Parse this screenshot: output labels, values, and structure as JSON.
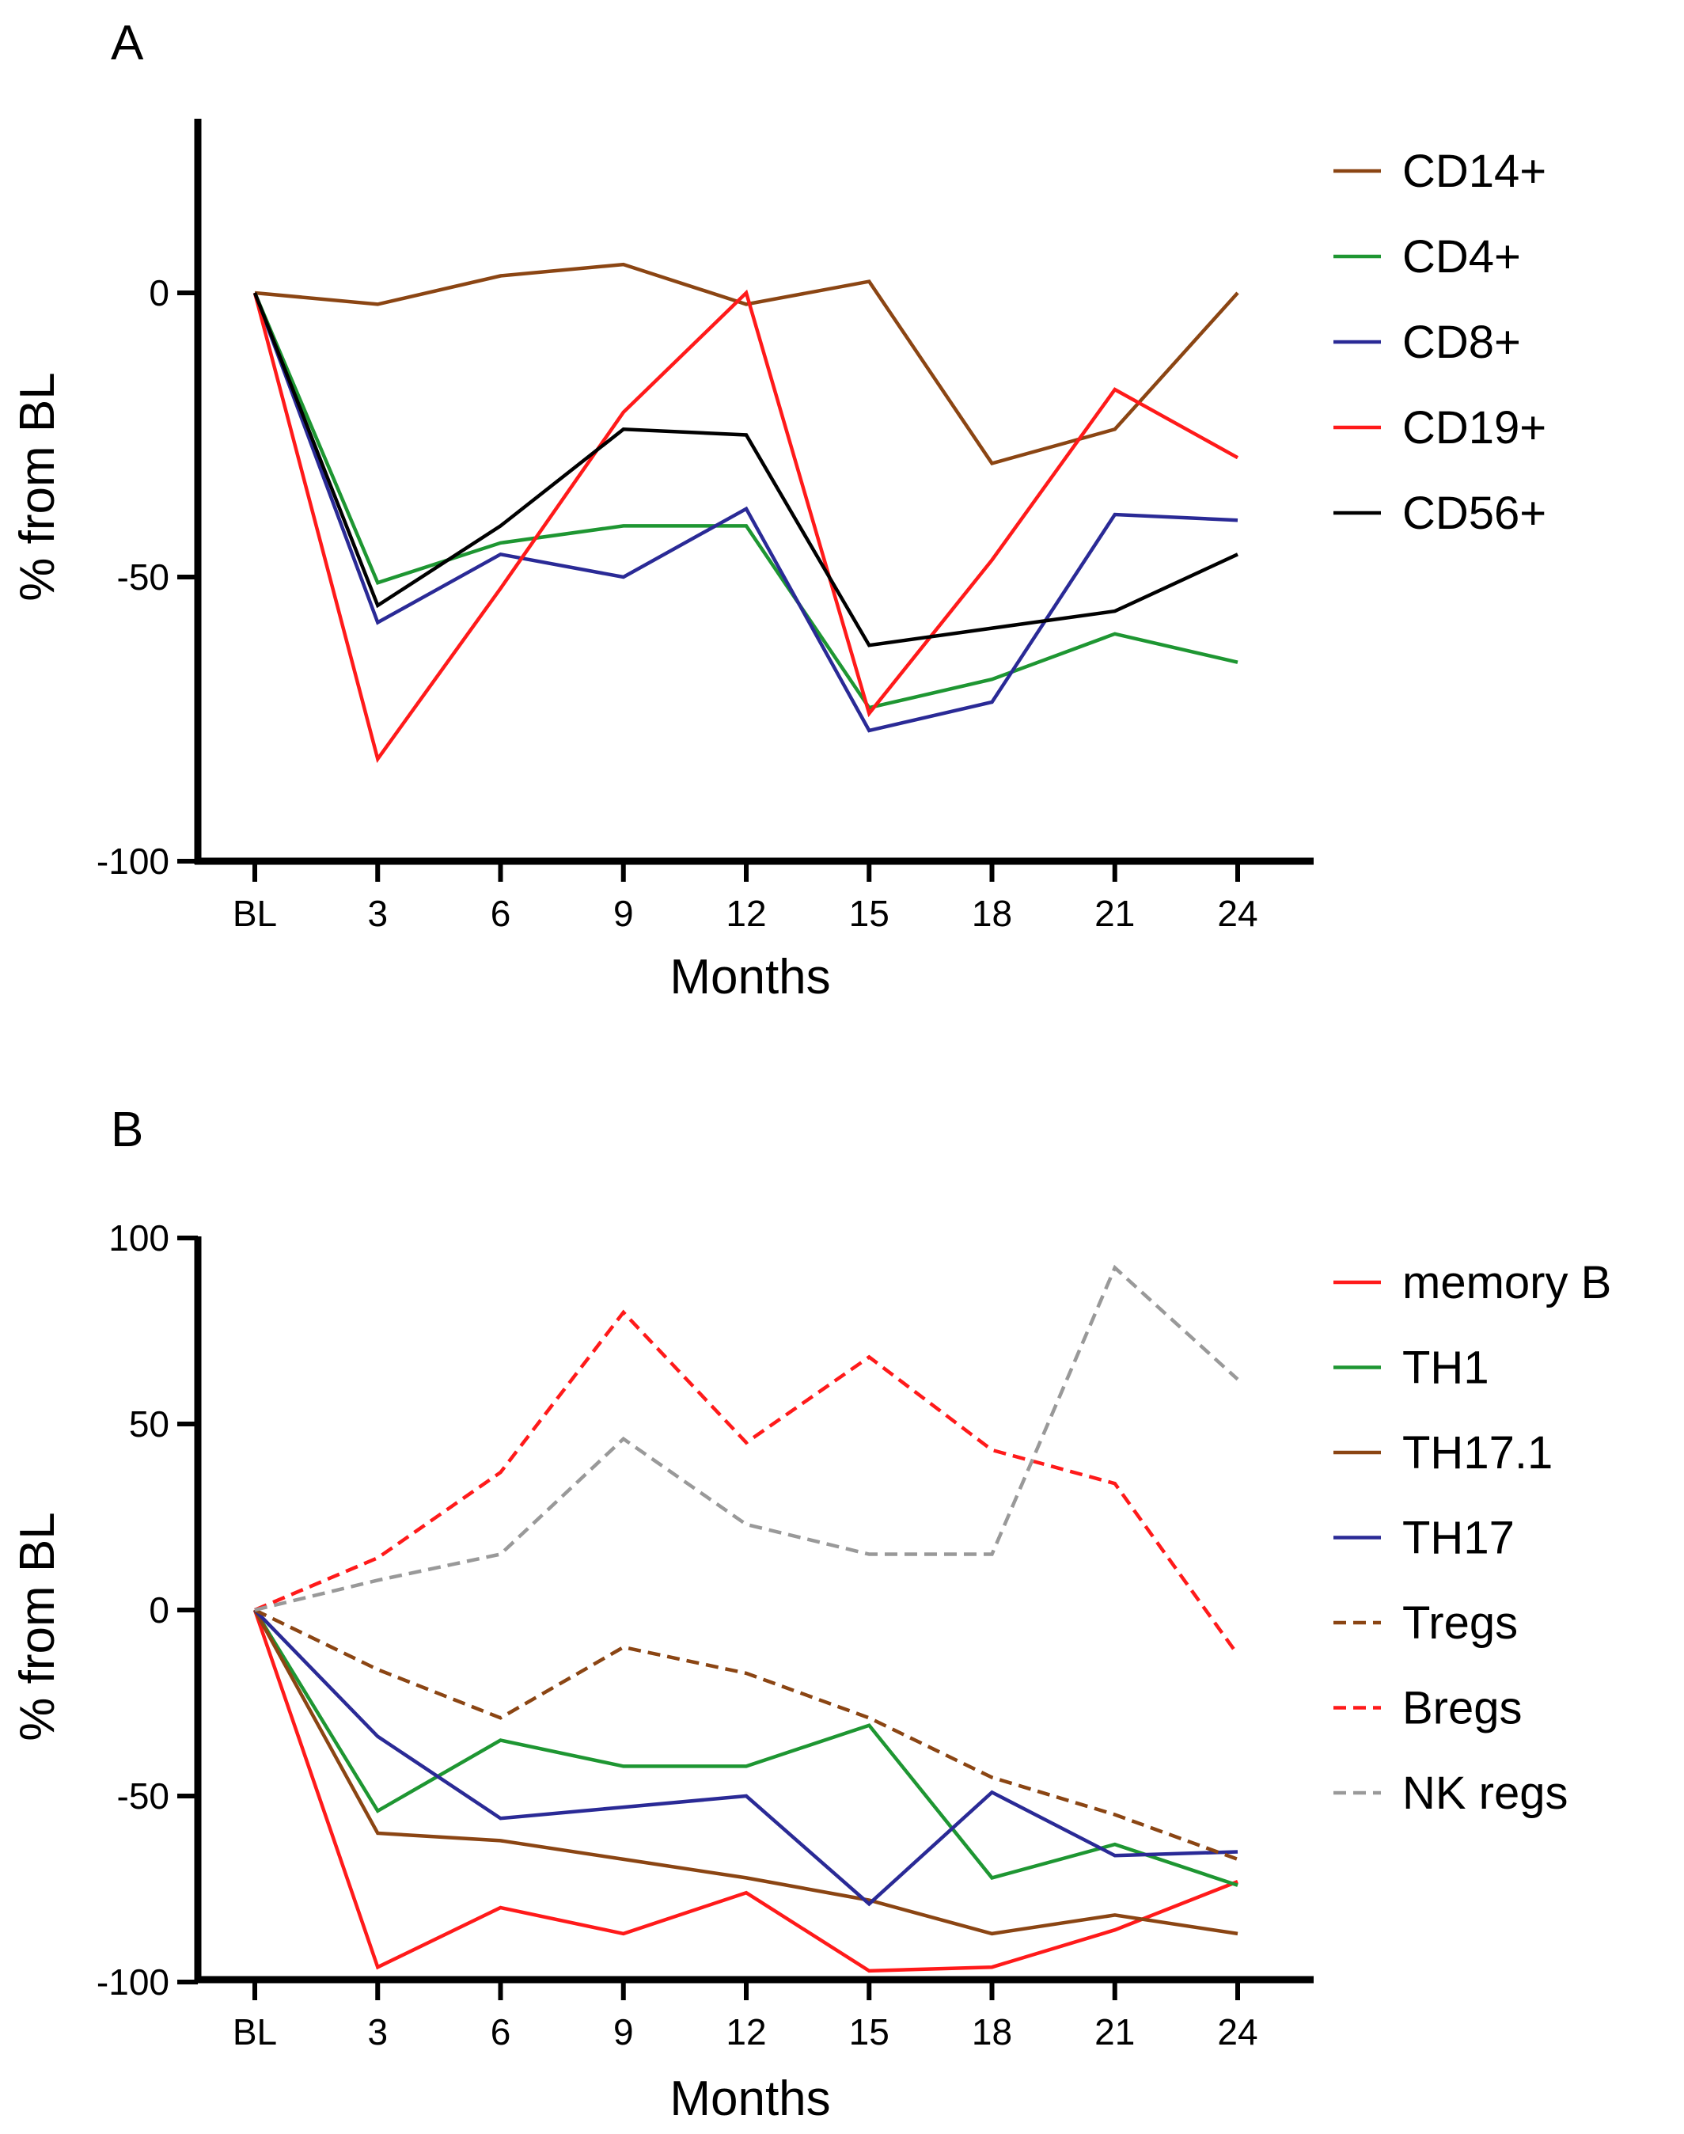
{
  "chart_data": [
    {
      "panel": "A",
      "type": "line",
      "title": "",
      "xlabel": "Months",
      "ylabel": "% from BL",
      "categories": [
        "BL",
        "3",
        "6",
        "9",
        "12",
        "15",
        "18",
        "21",
        "24"
      ],
      "ylim": [
        -100,
        30
      ],
      "yticks": [
        0,
        -50,
        -100
      ],
      "yticklabels": [
        "0",
        "-50",
        "-100"
      ],
      "grid": false,
      "legend_position": "right",
      "series": [
        {
          "name": "CD14+",
          "color": "#8B4513",
          "dash": "solid",
          "values": [
            0,
            -2,
            3,
            5,
            -2,
            2,
            -30,
            -24,
            0
          ]
        },
        {
          "name": "CD4+",
          "color": "#1E9632",
          "dash": "solid",
          "values": [
            0,
            -51,
            -44,
            -41,
            -41,
            -73,
            -68,
            -60,
            -65
          ]
        },
        {
          "name": "CD8+",
          "color": "#2A2A96",
          "dash": "solid",
          "values": [
            0,
            -58,
            -46,
            -50,
            -38,
            -77,
            -72,
            -39,
            -40
          ]
        },
        {
          "name": "CD19+",
          "color": "#FF1A1A",
          "dash": "solid",
          "values": [
            0,
            -82,
            -52,
            -21,
            0,
            -74,
            -47,
            -17,
            -29
          ]
        },
        {
          "name": "CD56+",
          "color": "#000000",
          "dash": "solid",
          "values": [
            0,
            -55,
            -41,
            -24,
            -25,
            -62,
            -59,
            -56,
            -46
          ]
        }
      ]
    },
    {
      "panel": "B",
      "type": "line",
      "title": "",
      "xlabel": "Months",
      "ylabel": "% from BL",
      "categories": [
        "BL",
        "3",
        "6",
        "9",
        "12",
        "15",
        "18",
        "21",
        "24"
      ],
      "ylim": [
        -100,
        100
      ],
      "yticks": [
        100,
        50,
        0,
        -50,
        -100
      ],
      "yticklabels": [
        "100",
        "50",
        "0",
        "-50",
        "-100"
      ],
      "grid": false,
      "legend_position": "right",
      "series": [
        {
          "name": "memory B",
          "color": "#FF1A1A",
          "dash": "solid",
          "values": [
            0,
            -96,
            -80,
            -87,
            -76,
            -97,
            -96,
            -86,
            -73
          ]
        },
        {
          "name": "TH1",
          "color": "#1E9632",
          "dash": "solid",
          "values": [
            0,
            -54,
            -35,
            -42,
            -42,
            -31,
            -72,
            -63,
            -74
          ]
        },
        {
          "name": "TH17.1",
          "color": "#8B4513",
          "dash": "solid",
          "values": [
            0,
            -60,
            -62,
            -67,
            -72,
            -78,
            -87,
            -82,
            -87
          ]
        },
        {
          "name": "TH17",
          "color": "#2A2A96",
          "dash": "solid",
          "values": [
            0,
            -34,
            -56,
            -53,
            -50,
            -79,
            -49,
            -66,
            -65
          ]
        },
        {
          "name": "Tregs",
          "color": "#8B4513",
          "dash": "dashed",
          "values": [
            0,
            -16,
            -29,
            -10,
            -17,
            -29,
            -45,
            -55,
            -67
          ]
        },
        {
          "name": "Bregs",
          "color": "#FF1A1A",
          "dash": "dashed",
          "values": [
            0,
            14,
            37,
            80,
            45,
            68,
            43,
            34,
            -12
          ]
        },
        {
          "name": "NK regs",
          "color": "#999999",
          "dash": "dashed",
          "values": [
            0,
            8,
            15,
            46,
            23,
            15,
            15,
            92,
            62
          ]
        }
      ]
    }
  ]
}
